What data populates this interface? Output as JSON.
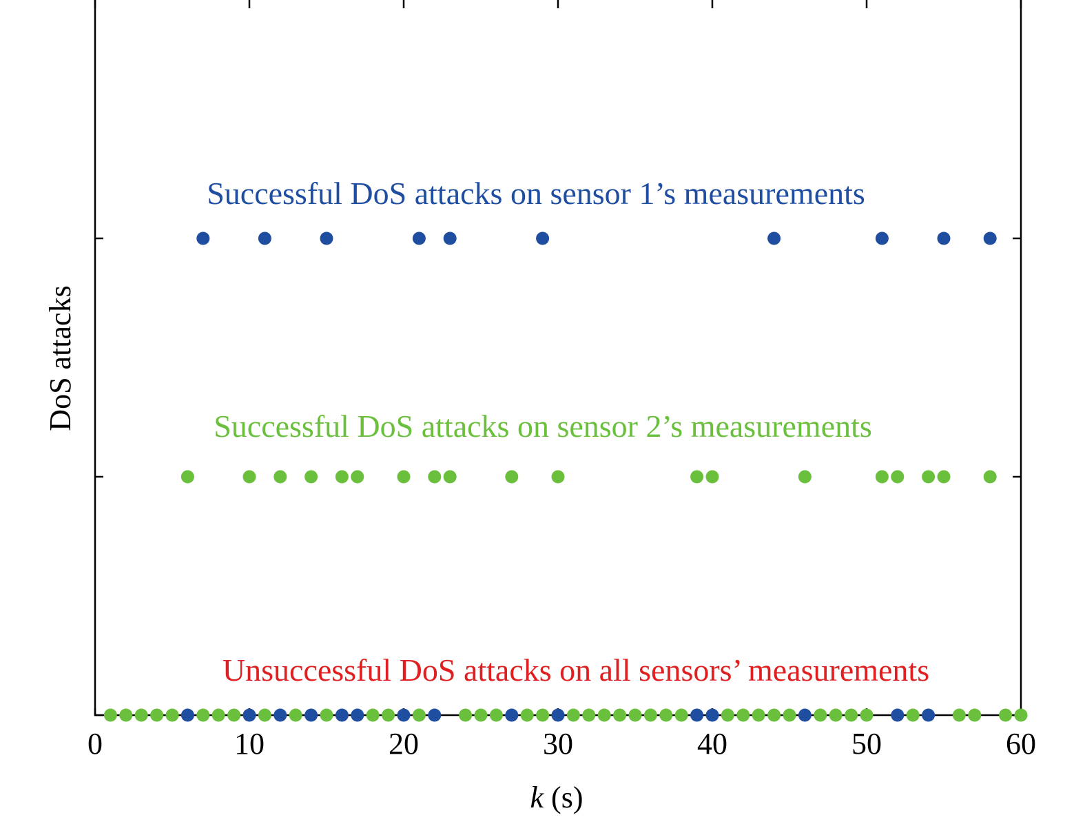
{
  "chart_data": {
    "type": "scatter",
    "xlabel_var": "k",
    "xlabel_unit": " (s)",
    "ylabel": "DoS attacks",
    "xlim": [
      0,
      60
    ],
    "x_ticks": [
      0,
      10,
      20,
      30,
      40,
      50,
      60
    ],
    "x_tick_labels": [
      "0",
      "10",
      "20",
      "30",
      "40",
      "50",
      "60"
    ],
    "grid": false,
    "series": [
      {
        "name": "Successful DoS attacks on sensor 1’s measurements",
        "level": 2,
        "color": "#1f4ea1",
        "x": [
          7,
          11,
          15,
          21,
          23,
          29,
          44,
          51,
          55,
          58
        ]
      },
      {
        "name": "Successful DoS attacks on sensor 2’s measurements",
        "level": 1,
        "color": "#6abf3c",
        "x": [
          6,
          10,
          12,
          14,
          16,
          17,
          20,
          22,
          23,
          27,
          30,
          39,
          40,
          46,
          51,
          52,
          54,
          55,
          58
        ]
      },
      {
        "name": "Unsuccessful DoS attacks on all sensors’ measurements",
        "level": 0,
        "label_color": "#e02020",
        "points": [
          {
            "x": 1,
            "color": "#6abf3c"
          },
          {
            "x": 2,
            "color": "#6abf3c"
          },
          {
            "x": 3,
            "color": "#6abf3c"
          },
          {
            "x": 4,
            "color": "#6abf3c"
          },
          {
            "x": 5,
            "color": "#6abf3c"
          },
          {
            "x": 6,
            "color": "#1f4ea1"
          },
          {
            "x": 7,
            "color": "#6abf3c"
          },
          {
            "x": 8,
            "color": "#6abf3c"
          },
          {
            "x": 9,
            "color": "#6abf3c"
          },
          {
            "x": 10,
            "color": "#1f4ea1"
          },
          {
            "x": 11,
            "color": "#6abf3c"
          },
          {
            "x": 12,
            "color": "#1f4ea1"
          },
          {
            "x": 13,
            "color": "#6abf3c"
          },
          {
            "x": 14,
            "color": "#1f4ea1"
          },
          {
            "x": 15,
            "color": "#6abf3c"
          },
          {
            "x": 16,
            "color": "#1f4ea1"
          },
          {
            "x": 17,
            "color": "#1f4ea1"
          },
          {
            "x": 18,
            "color": "#6abf3c"
          },
          {
            "x": 19,
            "color": "#6abf3c"
          },
          {
            "x": 20,
            "color": "#1f4ea1"
          },
          {
            "x": 21,
            "color": "#6abf3c"
          },
          {
            "x": 22,
            "color": "#1f4ea1"
          },
          {
            "x": 24,
            "color": "#6abf3c"
          },
          {
            "x": 25,
            "color": "#6abf3c"
          },
          {
            "x": 26,
            "color": "#6abf3c"
          },
          {
            "x": 27,
            "color": "#1f4ea1"
          },
          {
            "x": 28,
            "color": "#6abf3c"
          },
          {
            "x": 29,
            "color": "#6abf3c"
          },
          {
            "x": 30,
            "color": "#1f4ea1"
          },
          {
            "x": 31,
            "color": "#6abf3c"
          },
          {
            "x": 32,
            "color": "#6abf3c"
          },
          {
            "x": 33,
            "color": "#6abf3c"
          },
          {
            "x": 34,
            "color": "#6abf3c"
          },
          {
            "x": 35,
            "color": "#6abf3c"
          },
          {
            "x": 36,
            "color": "#6abf3c"
          },
          {
            "x": 37,
            "color": "#6abf3c"
          },
          {
            "x": 38,
            "color": "#6abf3c"
          },
          {
            "x": 39,
            "color": "#1f4ea1"
          },
          {
            "x": 40,
            "color": "#1f4ea1"
          },
          {
            "x": 41,
            "color": "#6abf3c"
          },
          {
            "x": 42,
            "color": "#6abf3c"
          },
          {
            "x": 43,
            "color": "#6abf3c"
          },
          {
            "x": 44,
            "color": "#6abf3c"
          },
          {
            "x": 45,
            "color": "#6abf3c"
          },
          {
            "x": 46,
            "color": "#1f4ea1"
          },
          {
            "x": 47,
            "color": "#6abf3c"
          },
          {
            "x": 48,
            "color": "#6abf3c"
          },
          {
            "x": 49,
            "color": "#6abf3c"
          },
          {
            "x": 50,
            "color": "#6abf3c"
          },
          {
            "x": 52,
            "color": "#1f4ea1"
          },
          {
            "x": 53,
            "color": "#6abf3c"
          },
          {
            "x": 54,
            "color": "#1f4ea1"
          },
          {
            "x": 56,
            "color": "#6abf3c"
          },
          {
            "x": 57,
            "color": "#6abf3c"
          },
          {
            "x": 59,
            "color": "#6abf3c"
          },
          {
            "x": 60,
            "color": "#6abf3c"
          }
        ]
      }
    ]
  }
}
